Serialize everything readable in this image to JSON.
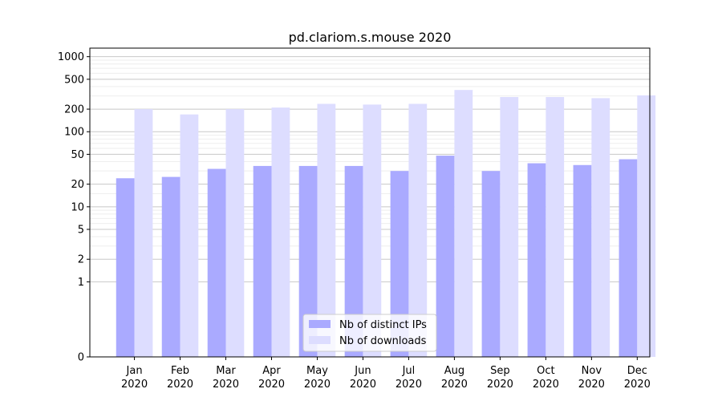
{
  "chart_data": {
    "type": "bar",
    "title": "pd.clariom.s.mouse 2020",
    "xlabel": "",
    "ylabel": "",
    "y_scale": "symlog",
    "ylim": [
      0,
      1300
    ],
    "y_ticks": [
      0,
      1,
      2,
      5,
      10,
      20,
      50,
      100,
      200,
      500,
      1000
    ],
    "y_tick_labels": [
      "0",
      "1",
      "2",
      "5",
      "10",
      "20",
      "50",
      "100",
      "200",
      "500",
      "1000"
    ],
    "grid": true,
    "legend_position": "bottom-center",
    "categories": [
      {
        "month": "Jan",
        "year": "2020"
      },
      {
        "month": "Feb",
        "year": "2020"
      },
      {
        "month": "Mar",
        "year": "2020"
      },
      {
        "month": "Apr",
        "year": "2020"
      },
      {
        "month": "May",
        "year": "2020"
      },
      {
        "month": "Jun",
        "year": "2020"
      },
      {
        "month": "Jul",
        "year": "2020"
      },
      {
        "month": "Aug",
        "year": "2020"
      },
      {
        "month": "Sep",
        "year": "2020"
      },
      {
        "month": "Oct",
        "year": "2020"
      },
      {
        "month": "Nov",
        "year": "2020"
      },
      {
        "month": "Dec",
        "year": "2020"
      }
    ],
    "series": [
      {
        "name": "Nb of distinct IPs",
        "color": "#aaaaff",
        "values": [
          24,
          25,
          32,
          35,
          35,
          35,
          30,
          48,
          30,
          38,
          36,
          43
        ]
      },
      {
        "name": "Nb of downloads",
        "color": "#ddddff",
        "values": [
          200,
          170,
          200,
          210,
          235,
          230,
          235,
          360,
          290,
          290,
          280,
          305
        ]
      }
    ]
  }
}
